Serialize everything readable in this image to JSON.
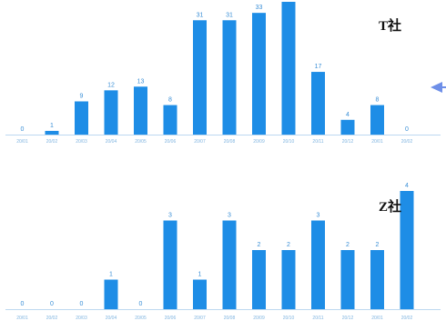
{
  "chart_data": [
    {
      "type": "bar",
      "series_label": "T社",
      "categories": [
        "20/01",
        "20/02",
        "20/03",
        "20/04",
        "20/05",
        "20/06",
        "20/07",
        "20/08",
        "20/09",
        "20/10",
        "20/11",
        "20/12",
        "20/01",
        "20/02"
      ],
      "values": [
        0,
        1,
        9,
        12,
        13,
        8,
        31,
        31,
        33,
        36,
        17,
        4,
        8,
        0
      ],
      "ylim": [
        0,
        36
      ],
      "grid": false,
      "color": "#1e8de6"
    },
    {
      "type": "bar",
      "series_label": "Z社",
      "categories": [
        "20/01",
        "20/02",
        "20/03",
        "20/04",
        "20/05",
        "20/06",
        "20/07",
        "20/08",
        "20/09",
        "20/10",
        "20/11",
        "20/12",
        "20/01",
        "20/02"
      ],
      "values": [
        0,
        0,
        0,
        1,
        0,
        3,
        1,
        3,
        2,
        2,
        3,
        2,
        2,
        4
      ],
      "ylim": [
        0,
        4
      ],
      "grid": false,
      "color": "#1e8de6"
    }
  ],
  "colors": {
    "bar": "#1e8de6",
    "value_label": "#3a8fd6",
    "tick_label": "#7fb4e0",
    "axis_line": "#bcd8f0",
    "arrow": "#6e8fe8"
  },
  "icons": {
    "pointer": "arrow-left-icon"
  }
}
